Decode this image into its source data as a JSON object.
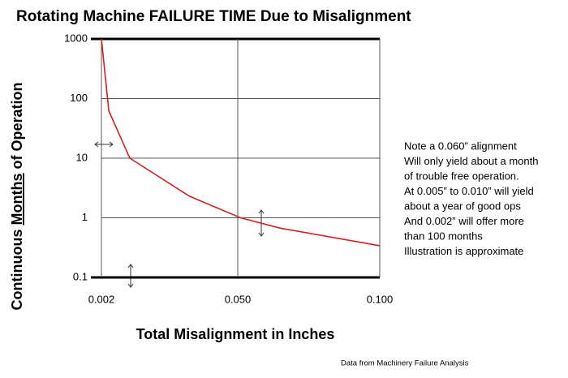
{
  "chart_data": {
    "type": "line",
    "title": "Rotating Machine FAILURE TIME  Due to Misalignment",
    "x_label": "Total Misalignment in Inches",
    "y_label": [
      "Continuous ",
      "Months",
      " of Operation"
    ],
    "x": [
      0.002,
      0.0046,
      0.012,
      0.033,
      0.051,
      0.065,
      0.1
    ],
    "series": [
      {
        "name": "Failure time",
        "color": "#d42020",
        "values": [
          1000,
          62,
          10,
          2.3,
          1,
          0.67,
          0.34
        ]
      }
    ],
    "xlim": [
      0.002,
      0.1
    ],
    "xticks": [
      {
        "value": 0.002,
        "label": "0.002"
      },
      {
        "value": 0.05,
        "label": "0.050"
      },
      {
        "value": 0.1,
        "label": "0.100"
      }
    ],
    "ylim": [
      0.1,
      1000
    ],
    "yticks": [
      1000,
      100,
      10,
      1,
      0.1
    ],
    "log_y": true,
    "grid": true,
    "annotations": [
      "Note a 0.060” alignment",
      "Will only yield about a month",
      " of trouble free operation.",
      "At 0.005” to 0.010” will yield",
      " about a year of good ops",
      "And 0.002” will offer more",
      " than 100 months",
      "Illustration is approximate"
    ],
    "source": "Data from Machinery  Failure Analysis"
  }
}
